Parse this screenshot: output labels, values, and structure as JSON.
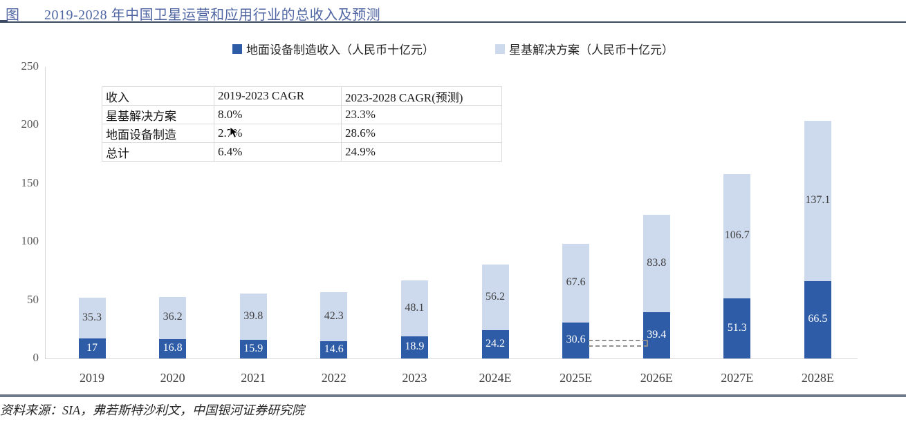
{
  "header": {
    "figure_tag": "图",
    "title": "2019-2028 年中国卫星运营和应用行业的总收入及预测"
  },
  "legend": [
    {
      "label": "地面设备制造收入（人民币十亿元）",
      "color": "#2e5ca6"
    },
    {
      "label": "星基解决方案（人民币十亿元）",
      "color": "#cdd9ec"
    }
  ],
  "cagr_table": {
    "headers": [
      "收入",
      "2019-2023 CAGR",
      "2023-2028 CAGR(预测)"
    ],
    "rows": [
      [
        "星基解决方案",
        "8.0%",
        "23.3%"
      ],
      [
        "地面设备制造",
        "2.7%",
        "28.6%"
      ],
      [
        "总计",
        "6.4%",
        "24.9%"
      ]
    ]
  },
  "chart_data": {
    "type": "bar",
    "stacked": true,
    "title": "2019-2028 年中国卫星运营和应用行业的总收入及预测",
    "categories": [
      "2019",
      "2020",
      "2021",
      "2022",
      "2023",
      "2024E",
      "2025E",
      "2026E",
      "2027E",
      "2028E"
    ],
    "series": [
      {
        "name": "地面设备制造收入（人民币十亿元）",
        "color": "#2e5ca6",
        "label_color": "#ffffff",
        "values": [
          17,
          16.8,
          15.9,
          14.6,
          18.9,
          24.2,
          30.6,
          39.4,
          51.3,
          66.5
        ],
        "labels": [
          "17",
          "16.8",
          "15.9",
          "14.6",
          "18.9",
          "24.2",
          "30.6",
          "39.4",
          "51.3",
          "66.5"
        ]
      },
      {
        "name": "星基解决方案（人民币十亿元）",
        "color": "#cdd9ec",
        "label_color": "#404040",
        "values": [
          35.3,
          36.2,
          39.8,
          42.3,
          48.1,
          56.2,
          67.6,
          83.8,
          106.7,
          137.1
        ],
        "labels": [
          "35.3",
          "36.2",
          "39.8",
          "42.3",
          "48.1",
          "56.2",
          "67.6",
          "83.8",
          "106.7",
          "137.1"
        ]
      }
    ],
    "ylabel": "",
    "xlabel": "",
    "ylim": [
      0,
      250
    ],
    "yticks": [
      0,
      50,
      100,
      150,
      200,
      250
    ],
    "grid": false,
    "legend_position": "top",
    "annotation": {
      "type": "dashed-connector",
      "from_category": "2025E",
      "to_category": "2026E",
      "description": "double dashed line between 2025E and 2026E ground-equipment segments"
    }
  },
  "source": "资料来源：SIA，弗若斯特沙利文，中国银河证券研究院"
}
